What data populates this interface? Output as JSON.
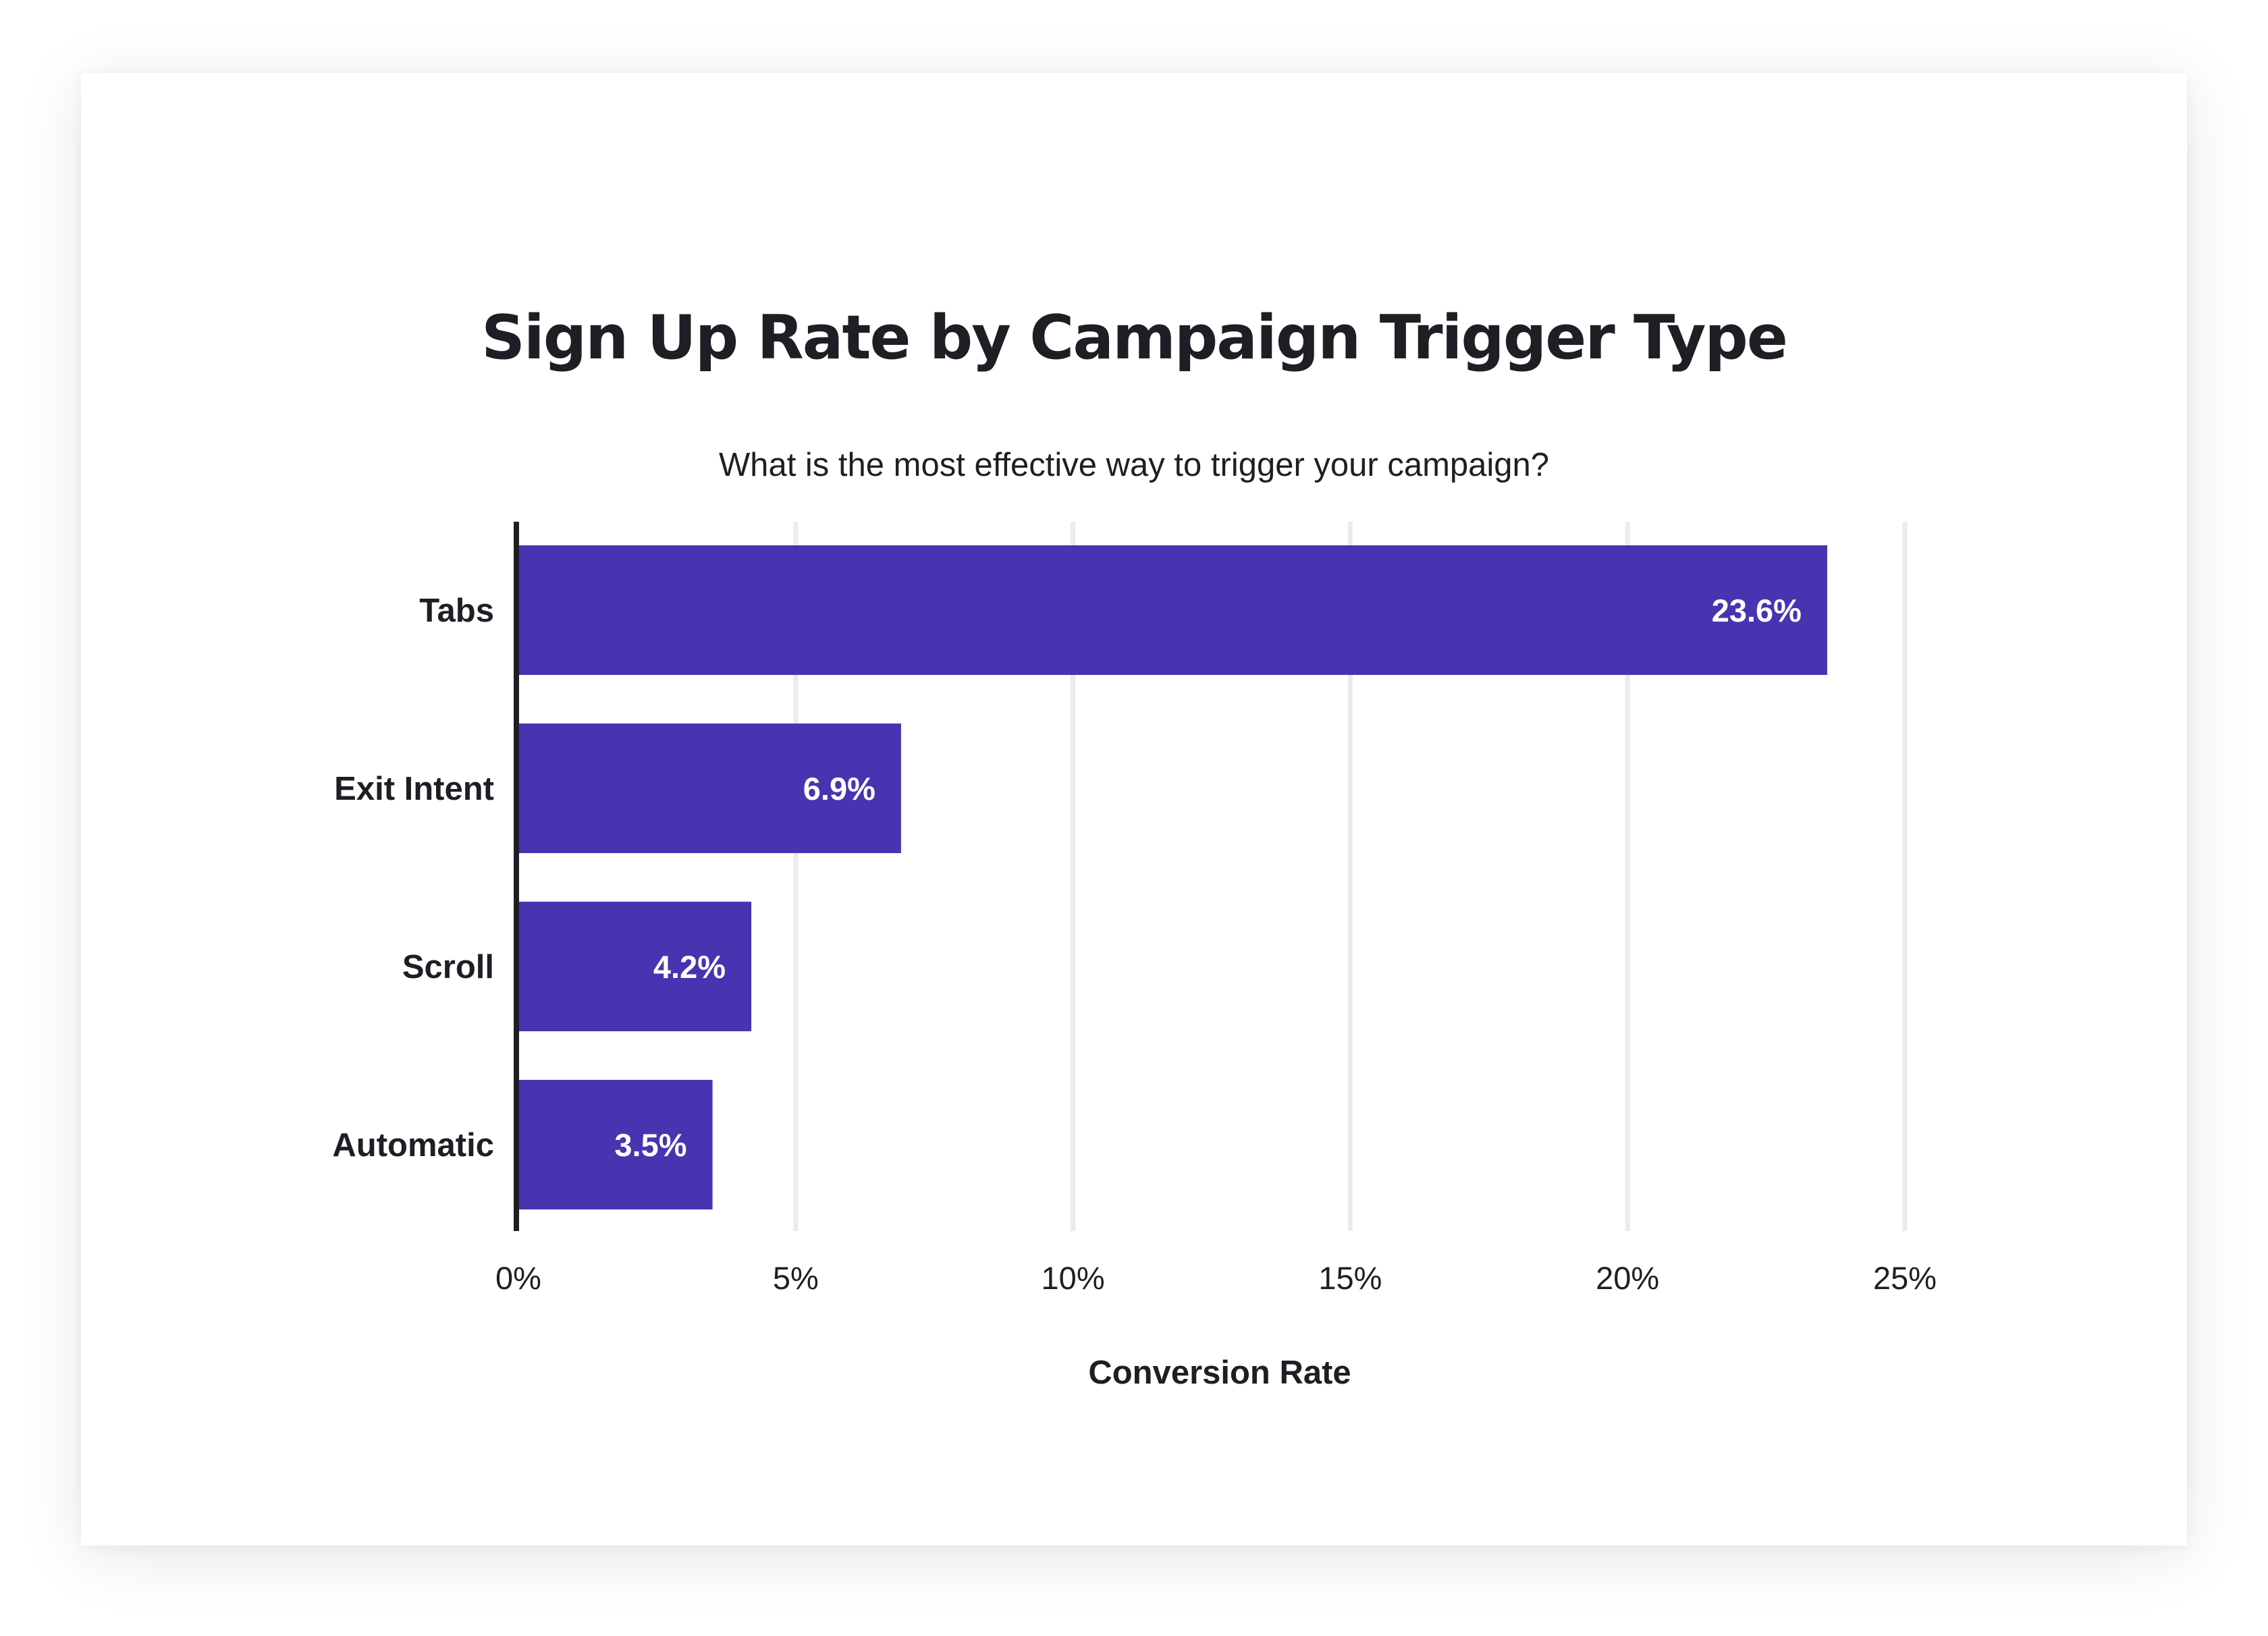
{
  "chart_data": {
    "type": "bar",
    "orientation": "horizontal",
    "title": "Sign Up Rate by Campaign Trigger Type",
    "subtitle": "What is the most effective way to trigger your campaign?",
    "categories": [
      "Tabs",
      "Exit Intent",
      "Scroll",
      "Automatic"
    ],
    "values": [
      23.6,
      6.9,
      4.2,
      3.5
    ],
    "value_labels": [
      "23.6%",
      "6.9%",
      "4.2%",
      "3.5%"
    ],
    "xlabel": "Conversion Rate",
    "ylabel": "",
    "xlim": [
      0,
      25
    ],
    "x_ticks": [
      0,
      5,
      10,
      15,
      20,
      25
    ],
    "x_tick_labels": [
      "0%",
      "5%",
      "10%",
      "15%",
      "20%",
      "25%"
    ],
    "grid": "vertical",
    "legend": "none",
    "colors": {
      "bar": "#4a33b0",
      "grid": "#ebebeb",
      "axis": "#1e1e24",
      "text": "#1e1e24",
      "value_text": "#ffffff"
    }
  }
}
